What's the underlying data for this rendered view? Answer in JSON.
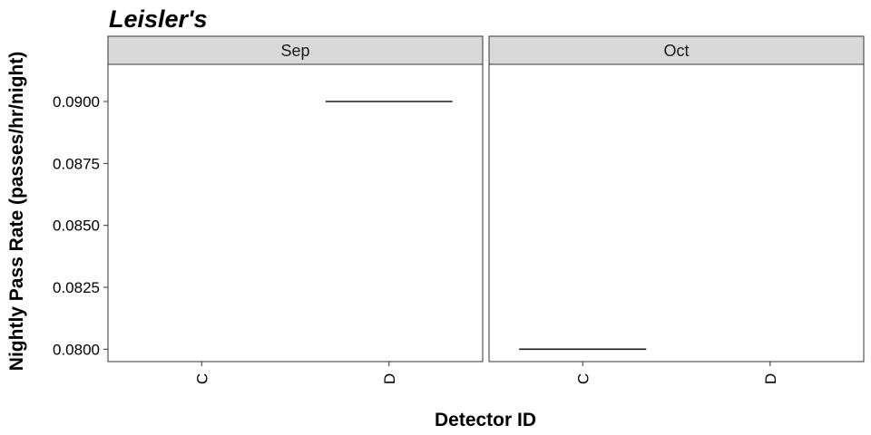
{
  "chart_data": {
    "type": "boxplot",
    "title": "Leisler's",
    "xlabel": "Detector ID",
    "ylabel": "Nightly Pass Rate (passes/hr/night)",
    "ylim": [
      0.0795,
      0.0915
    ],
    "yticks": [
      "0.0800",
      "0.0825",
      "0.0850",
      "0.0875",
      "0.0900"
    ],
    "categories": [
      "C",
      "D"
    ],
    "facets": [
      {
        "name": "Sep",
        "values": [
          null,
          0.09
        ]
      },
      {
        "name": "Oct",
        "values": [
          0.08,
          null
        ]
      }
    ],
    "grid": false,
    "legend": "none"
  }
}
